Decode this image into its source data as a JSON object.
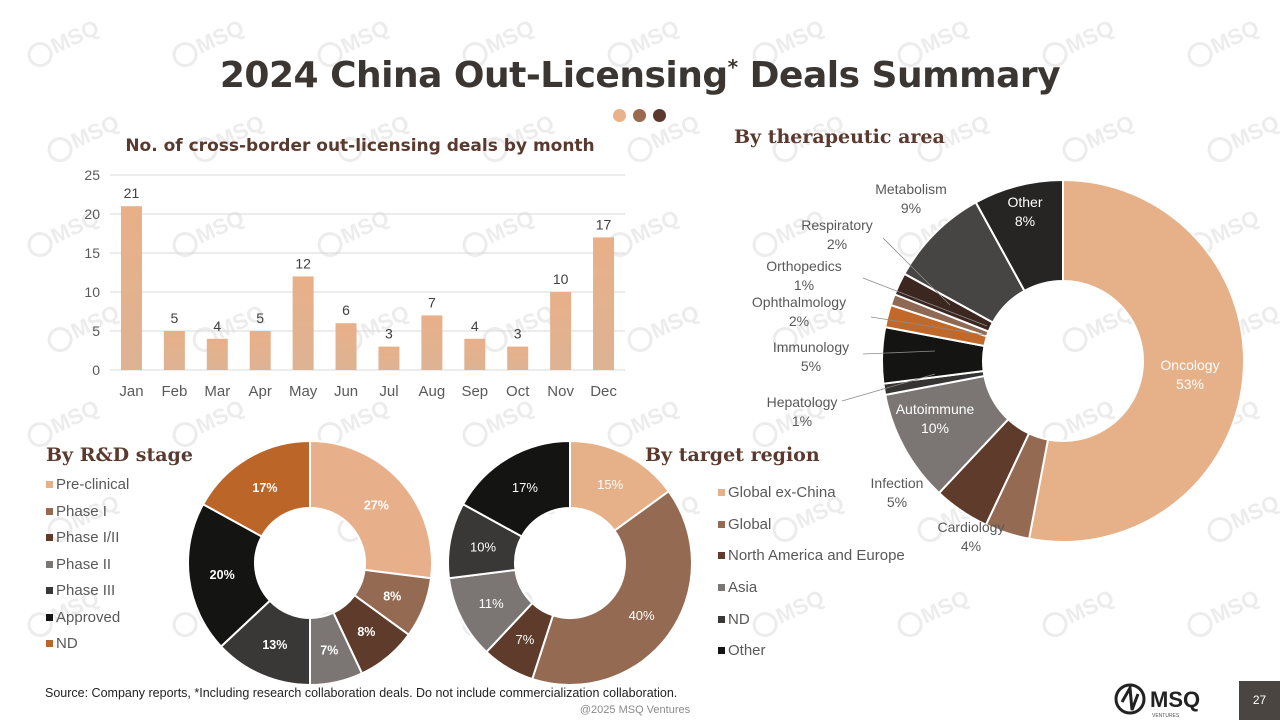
{
  "header": {
    "title": "2024 China Out-Licensing",
    "title_mark": "*",
    "title_tail": " Deals Summary"
  },
  "accent_dots": [
    "#e8b38a",
    "#9a6a4e",
    "#5a3a2e"
  ],
  "watermark_text": "MSQ",
  "sections": {
    "monthly_title": "No. of cross-border out-licensing deals by month",
    "therapeutic_title": "By therapeutic area",
    "stage_title": "By R&D stage",
    "region_title": "By target region"
  },
  "chart_data": [
    {
      "type": "bar",
      "title": "No. of cross-border out-licensing deals by month",
      "categories": [
        "Jan",
        "Feb",
        "Mar",
        "Apr",
        "May",
        "Jun",
        "Jul",
        "Aug",
        "Sep",
        "Oct",
        "Nov",
        "Dec"
      ],
      "values": [
        21,
        5,
        4,
        5,
        12,
        6,
        3,
        7,
        4,
        3,
        10,
        17
      ],
      "ylim": [
        0,
        25
      ],
      "yticks": [
        0,
        5,
        10,
        15,
        20,
        25
      ],
      "grid": true,
      "bar_color_top": "#e9b088",
      "bar_color_bottom": "#ddb394"
    },
    {
      "type": "pie",
      "title": "By therapeutic area",
      "slices": [
        {
          "label": "Oncology",
          "value": 53,
          "text": "53%",
          "color": "#e6b088"
        },
        {
          "label": "Cardiology",
          "value": 4,
          "text": "4%",
          "color": "#946a52"
        },
        {
          "label": "Infection",
          "value": 5,
          "text": "5%",
          "color": "#5e3b2b"
        },
        {
          "label": "Autoimmune",
          "value": 10,
          "text": "10%",
          "color": "#7b7673"
        },
        {
          "label": "Hepatology",
          "value": 1,
          "text": "1%",
          "color": "#363433"
        },
        {
          "label": "Immunology",
          "value": 5,
          "text": "5%",
          "color": "#141413"
        },
        {
          "label": "Ophthalmology",
          "value": 2,
          "text": "2%",
          "color": "#c0692a"
        },
        {
          "label": "Orthopedics",
          "value": 1,
          "text": "1%",
          "color": "#8e6a55"
        },
        {
          "label": "Respiratory",
          "value": 2,
          "text": "2%",
          "color": "#3b2620"
        },
        {
          "label": "Metabolism",
          "value": 9,
          "text": "9%",
          "color": "#474544"
        },
        {
          "label": "Other",
          "value": 8,
          "text": "8%",
          "color": "#262524"
        }
      ]
    },
    {
      "type": "pie",
      "title": "By R&D stage",
      "slices": [
        {
          "label": "Pre-clinical",
          "value": 27,
          "text": "27%",
          "color": "#e8b08a"
        },
        {
          "label": "Phase I",
          "value": 8,
          "text": "8%",
          "color": "#946a52"
        },
        {
          "label": "Phase I/II",
          "value": 8,
          "text": "8%",
          "color": "#5e3b2b"
        },
        {
          "label": "Phase II",
          "value": 7,
          "text": "7%",
          "color": "#7b7673"
        },
        {
          "label": "Phase III",
          "value": 13,
          "text": "13%",
          "color": "#3a3837"
        },
        {
          "label": "Approved",
          "value": 20,
          "text": "20%",
          "color": "#141413"
        },
        {
          "label": "ND",
          "value": 17,
          "text": "17%",
          "color": "#bb6529"
        }
      ]
    },
    {
      "type": "pie",
      "title": "By target region",
      "slices": [
        {
          "label": "Global ex-China",
          "value": 15,
          "text": "15%",
          "color": "#e6b088"
        },
        {
          "label": "Global",
          "value": 40,
          "text": "40%",
          "color": "#946a52"
        },
        {
          "label": "North America and Europe",
          "value": 7,
          "text": "7%",
          "color": "#5e3b2b"
        },
        {
          "label": "Asia",
          "value": 11,
          "text": "11%",
          "color": "#7b7673"
        },
        {
          "label": "ND",
          "value": 10,
          "text": "10%",
          "color": "#3a3837"
        },
        {
          "label": "Other",
          "value": 17,
          "text": "17%",
          "color": "#141413"
        }
      ]
    }
  ],
  "footer": {
    "source": "Source: Company reports,  *Including research collaboration deals. Do not include commercialization collaboration.",
    "copyright": "@2025 MSQ Ventures",
    "page_number": "27",
    "logo_text": "MSQ",
    "logo_subtext": "VENTURES"
  }
}
